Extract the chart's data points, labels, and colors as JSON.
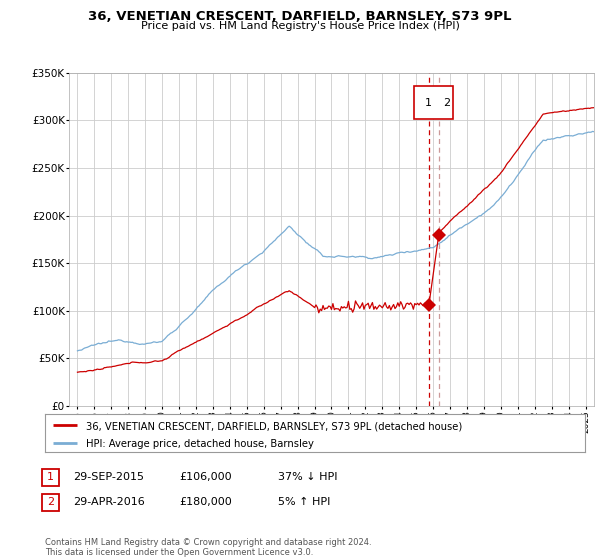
{
  "title": "36, VENETIAN CRESCENT, DARFIELD, BARNSLEY, S73 9PL",
  "subtitle": "Price paid vs. HM Land Registry's House Price Index (HPI)",
  "legend_label_red": "36, VENETIAN CRESCENT, DARFIELD, BARNSLEY, S73 9PL (detached house)",
  "legend_label_blue": "HPI: Average price, detached house, Barnsley",
  "transaction1_date": "29-SEP-2015",
  "transaction1_price": "£106,000",
  "transaction1_note": "37% ↓ HPI",
  "transaction2_date": "29-APR-2016",
  "transaction2_price": "£180,000",
  "transaction2_note": "5% ↑ HPI",
  "footer": "Contains HM Land Registry data © Crown copyright and database right 2024.\nThis data is licensed under the Open Government Licence v3.0.",
  "vline1_x": 2015.75,
  "vline2_x": 2016.33,
  "dot1_x": 2015.75,
  "dot1_y": 106000,
  "dot2_x": 2016.33,
  "dot2_y": 180000,
  "ylim": [
    0,
    350000
  ],
  "xlim": [
    1994.5,
    2025.5
  ],
  "color_red": "#cc0000",
  "color_blue": "#7aadd4",
  "color_vline1": "#cc0000",
  "color_vline2": "#cc9999",
  "background_plot": "#ffffff",
  "background_fig": "#ffffff",
  "grid_color": "#cccccc"
}
